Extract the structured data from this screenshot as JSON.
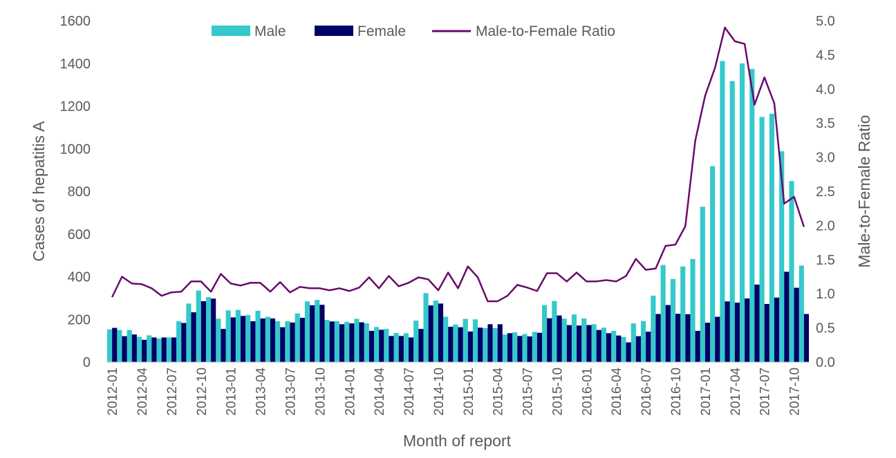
{
  "chart_data": {
    "type": "bar",
    "xlabel": "Month of report",
    "ylabel": "Cases of hepatitis A",
    "y2label": "Male-to-Female Ratio",
    "ylim": [
      0,
      1600
    ],
    "yticks": [
      "0",
      "200",
      "400",
      "600",
      "800",
      "1000",
      "1200",
      "1400",
      "1600"
    ],
    "y2lim": [
      0,
      5.0
    ],
    "y2ticks": [
      "0.0",
      "0.5",
      "1.0",
      "1.5",
      "2.0",
      "2.5",
      "3.0",
      "3.5",
      "4.0",
      "4.5",
      "5.0"
    ],
    "grid": false,
    "legend_position": "top",
    "colors": {
      "male": "#35C9CC",
      "female": "#000066",
      "ratio": "#680A6A"
    },
    "categories": [
      "2012-01",
      "2012-02",
      "2012-03",
      "2012-04",
      "2012-05",
      "2012-06",
      "2012-07",
      "2012-08",
      "2012-09",
      "2012-10",
      "2012-11",
      "2012-12",
      "2013-01",
      "2013-02",
      "2013-03",
      "2013-04",
      "2013-05",
      "2013-06",
      "2013-07",
      "2013-08",
      "2013-09",
      "2013-10",
      "2013-11",
      "2013-12",
      "2014-01",
      "2014-02",
      "2014-03",
      "2014-04",
      "2014-05",
      "2014-06",
      "2014-07",
      "2014-08",
      "2014-09",
      "2014-10",
      "2014-11",
      "2014-12",
      "2015-01",
      "2015-02",
      "2015-03",
      "2015-04",
      "2015-05",
      "2015-06",
      "2015-07",
      "2015-08",
      "2015-09",
      "2015-10",
      "2015-11",
      "2015-12",
      "2016-01",
      "2016-02",
      "2016-03",
      "2016-04",
      "2016-05",
      "2016-06",
      "2016-07",
      "2016-08",
      "2016-09",
      "2016-10",
      "2016-11",
      "2016-12",
      "2017-01",
      "2017-02",
      "2017-03",
      "2017-04",
      "2017-05",
      "2017-06",
      "2017-07",
      "2017-08",
      "2017-09",
      "2017-10",
      "2017-11"
    ],
    "series": [
      {
        "name": "Male",
        "type": "bar",
        "axis": "left",
        "values": [
          153,
          150,
          150,
          118,
          125,
          110,
          115,
          191,
          274,
          335,
          304,
          203,
          242,
          244,
          220,
          240,
          212,
          191,
          191,
          228,
          284,
          291,
          197,
          191,
          188,
          202,
          181,
          164,
          155,
          136,
          135,
          194,
          323,
          288,
          212,
          176,
          202,
          200,
          159,
          159,
          129,
          139,
          131,
          141,
          267,
          286,
          203,
          223,
          204,
          177,
          161,
          146,
          117,
          181,
          192,
          311,
          455,
          389,
          448,
          483,
          728,
          918,
          1411,
          1317,
          1400,
          1374,
          1149,
          1164,
          988,
          848,
          452
        ]
      },
      {
        "name": "Female",
        "type": "bar",
        "axis": "left",
        "values": [
          160,
          121,
          129,
          104,
          115,
          115,
          115,
          183,
          233,
          285,
          297,
          155,
          209,
          216,
          191,
          204,
          204,
          163,
          185,
          207,
          266,
          268,
          190,
          177,
          181,
          186,
          146,
          151,
          122,
          122,
          115,
          155,
          265,
          274,
          165,
          163,
          143,
          161,
          177,
          177,
          135,
          122,
          120,
          137,
          205,
          218,
          173,
          171,
          173,
          150,
          135,
          124,
          92,
          121,
          142,
          225,
          267,
          226,
          224,
          146,
          184,
          212,
          284,
          278,
          298,
          363,
          272,
          302,
          423,
          348,
          225
        ]
      },
      {
        "name": "Male-to-Female Ratio",
        "type": "line",
        "axis": "right",
        "values": [
          0.95,
          1.25,
          1.15,
          1.14,
          1.08,
          0.97,
          1.02,
          1.03,
          1.18,
          1.18,
          1.03,
          1.29,
          1.15,
          1.12,
          1.16,
          1.16,
          1.03,
          1.17,
          1.02,
          1.1,
          1.08,
          1.08,
          1.05,
          1.08,
          1.04,
          1.09,
          1.24,
          1.08,
          1.26,
          1.11,
          1.16,
          1.24,
          1.21,
          1.05,
          1.31,
          1.08,
          1.4,
          1.24,
          0.89,
          0.89,
          0.97,
          1.13,
          1.09,
          1.04,
          1.3,
          1.3,
          1.18,
          1.31,
          1.18,
          1.18,
          1.2,
          1.18,
          1.26,
          1.51,
          1.35,
          1.37,
          1.7,
          1.72,
          1.99,
          3.24,
          3.9,
          4.31,
          4.9,
          4.7,
          4.66,
          3.77,
          4.17,
          3.79,
          2.32,
          2.42,
          1.98
        ]
      }
    ]
  }
}
